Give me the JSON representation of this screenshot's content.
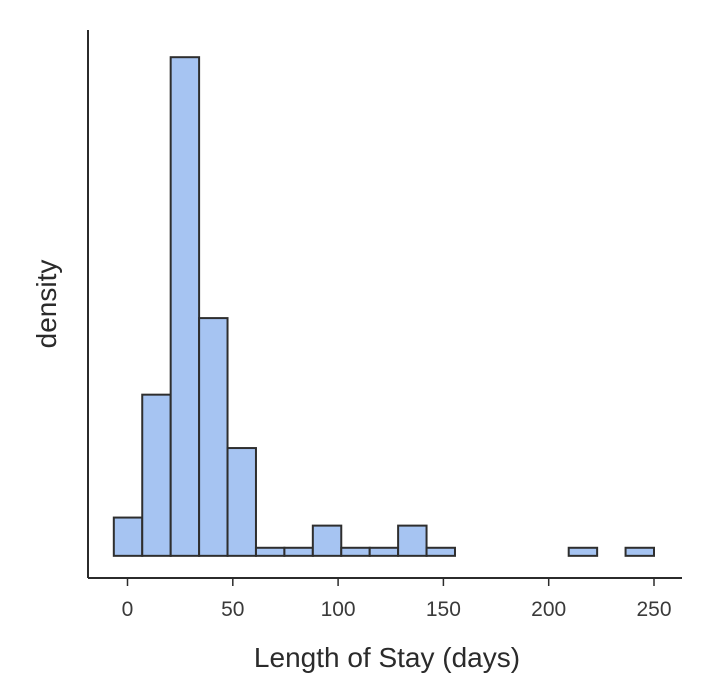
{
  "chart_data": {
    "type": "bar",
    "subtype": "histogram",
    "title": "",
    "xlabel": "Length of Stay (days)",
    "ylabel": "density",
    "xlim": [
      -7,
      264
    ],
    "x_ticks": [
      0,
      50,
      100,
      150,
      200,
      250
    ],
    "y_ticks_shown": false,
    "grid": false,
    "bar_color": "#a6c4f2",
    "bar_edge_color": "#2e2e2e",
    "bins": [
      {
        "start": -6.5,
        "end": 7,
        "value": 0.0038
      },
      {
        "start": 7,
        "end": 20.5,
        "value": 0.016
      },
      {
        "start": 20.5,
        "end": 34,
        "value": 0.0495
      },
      {
        "start": 34,
        "end": 47.5,
        "value": 0.0236
      },
      {
        "start": 47.5,
        "end": 61,
        "value": 0.0107
      },
      {
        "start": 61,
        "end": 74.5,
        "value": 0.0008
      },
      {
        "start": 74.5,
        "end": 88,
        "value": 0.0008
      },
      {
        "start": 88,
        "end": 101.5,
        "value": 0.003
      },
      {
        "start": 101.5,
        "end": 115,
        "value": 0.0008
      },
      {
        "start": 115,
        "end": 128.5,
        "value": 0.0008
      },
      {
        "start": 128.5,
        "end": 142,
        "value": 0.003
      },
      {
        "start": 142,
        "end": 155.5,
        "value": 0.0008
      },
      {
        "start": 155.5,
        "end": 169,
        "value": 0.0
      },
      {
        "start": 169,
        "end": 182.5,
        "value": 0.0
      },
      {
        "start": 182.5,
        "end": 196,
        "value": 0.0
      },
      {
        "start": 196,
        "end": 209.5,
        "value": 0.0
      },
      {
        "start": 209.5,
        "end": 223,
        "value": 0.0008
      },
      {
        "start": 223,
        "end": 236.5,
        "value": 0.0
      },
      {
        "start": 236.5,
        "end": 250,
        "value": 0.0008
      }
    ],
    "ylim": [
      -0.0022,
      0.0522
    ]
  }
}
